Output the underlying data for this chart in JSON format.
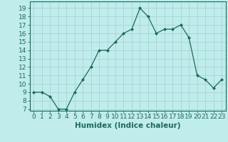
{
  "x": [
    0,
    1,
    2,
    3,
    4,
    5,
    6,
    7,
    8,
    9,
    10,
    11,
    12,
    13,
    14,
    15,
    16,
    17,
    18,
    19,
    20,
    21,
    22,
    23
  ],
  "y": [
    9,
    9,
    8.5,
    7,
    7,
    9,
    10.5,
    12,
    14,
    14,
    15,
    16,
    16.5,
    19,
    18,
    16,
    16.5,
    16.5,
    17,
    15.5,
    11,
    10.5,
    9.5,
    10.5
  ],
  "line_color": "#1a6b5a",
  "marker": "D",
  "marker_size": 2.0,
  "bg_color": "#c0ecec",
  "grid_color": "#a8d8d8",
  "xlabel": "Humidex (Indice chaleur)",
  "xlim": [
    -0.5,
    23.5
  ],
  "ylim": [
    6.8,
    19.8
  ],
  "yticks": [
    7,
    8,
    9,
    10,
    11,
    12,
    13,
    14,
    15,
    16,
    17,
    18,
    19
  ],
  "xticks": [
    0,
    1,
    2,
    3,
    4,
    5,
    6,
    7,
    8,
    9,
    10,
    11,
    12,
    13,
    14,
    15,
    16,
    17,
    18,
    19,
    20,
    21,
    22,
    23
  ],
  "tick_label_fontsize": 6.5,
  "xlabel_fontsize": 7.5
}
